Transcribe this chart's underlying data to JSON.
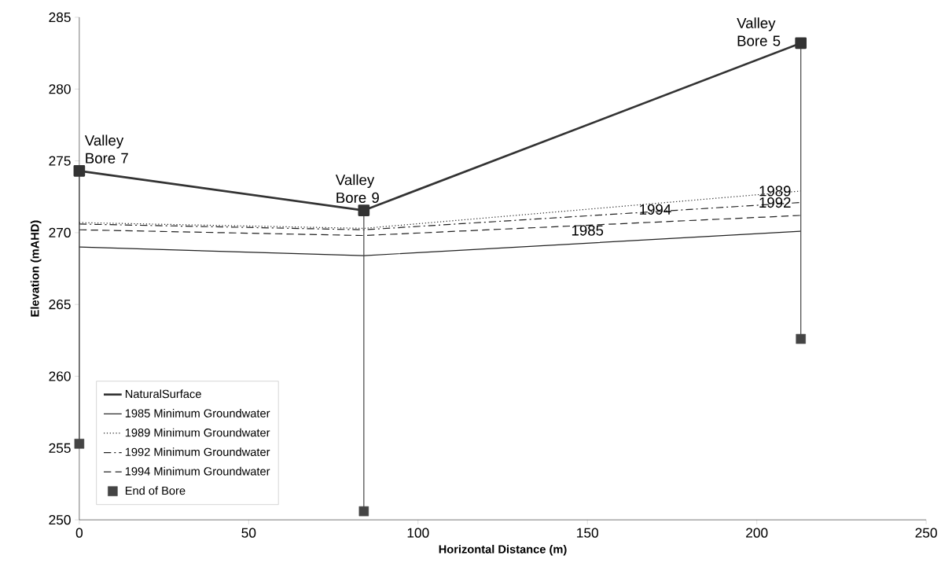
{
  "chart_data": {
    "type": "line",
    "xlabel": "Horizontal Distance (m)",
    "ylabel": "Elevation (mAHD)",
    "xlim": [
      0,
      250
    ],
    "xticks": [
      0,
      50,
      100,
      150,
      200,
      250
    ],
    "ylim": [
      250,
      285
    ],
    "yticks": [
      250,
      255,
      260,
      265,
      270,
      275,
      280,
      285
    ],
    "legend": "bottom left",
    "x": [
      0,
      84,
      213
    ],
    "series": [
      {
        "name": "NaturalSurface",
        "color": "#333333",
        "values": [
          274.3,
          271.55,
          283.2
        ],
        "line_style": "solid",
        "marker": "square"
      },
      {
        "name": "1985 Minimum Groundwater",
        "color": "#222222",
        "values": [
          269.0,
          268.4,
          270.1
        ],
        "line_style": "solid",
        "marker": "none"
      },
      {
        "name": "1989 Minimum Groundwater",
        "color": "#222222",
        "values": [
          270.7,
          270.3,
          272.9
        ],
        "line_style": "dotted",
        "marker": "none"
      },
      {
        "name": "1992 Minimum Groundwater",
        "color": "#222222",
        "values": [
          270.6,
          270.2,
          272.1
        ],
        "line_style": "dashdotted",
        "marker": "none"
      },
      {
        "name": "1994 Minimum Groundwater",
        "color": "#222222",
        "values": [
          270.2,
          269.8,
          271.2
        ],
        "line_style": "dashed",
        "marker": "none"
      },
      {
        "name": "End of Bore",
        "type": "scatter",
        "color": "#444444",
        "values": [
          255.3,
          250.6,
          262.6
        ],
        "marker": "square"
      },
      {
        "color": "#444444",
        "x": [
          0,
          0
        ],
        "values": [
          274.3,
          255.3
        ],
        "line_style": "solid",
        "marker": "none"
      },
      {
        "color": "#444444",
        "x": [
          84,
          84
        ],
        "values": [
          271.55,
          250.6
        ],
        "line_style": "solid",
        "marker": "none"
      },
      {
        "color": "#444444",
        "x": [
          213,
          213
        ],
        "values": [
          283.2,
          262.6
        ],
        "line_style": "solid",
        "marker": "none"
      }
    ],
    "annotations": [
      {
        "text": "Valley Bore 7",
        "x": 0,
        "y": 274.3
      },
      {
        "text": "Valley Bore 9",
        "x": 84,
        "y": 271.55
      },
      {
        "text": "Valley Bore 5",
        "x": 213,
        "y": 283.2
      },
      {
        "text": "1989",
        "x": 213,
        "y": 272.9
      },
      {
        "text": "1992",
        "x": 213,
        "y": 272.1
      },
      {
        "text": "1994",
        "x": 170,
        "y": 270.73
      },
      {
        "text": "1985",
        "x": 150,
        "y": 269.27
      }
    ]
  }
}
